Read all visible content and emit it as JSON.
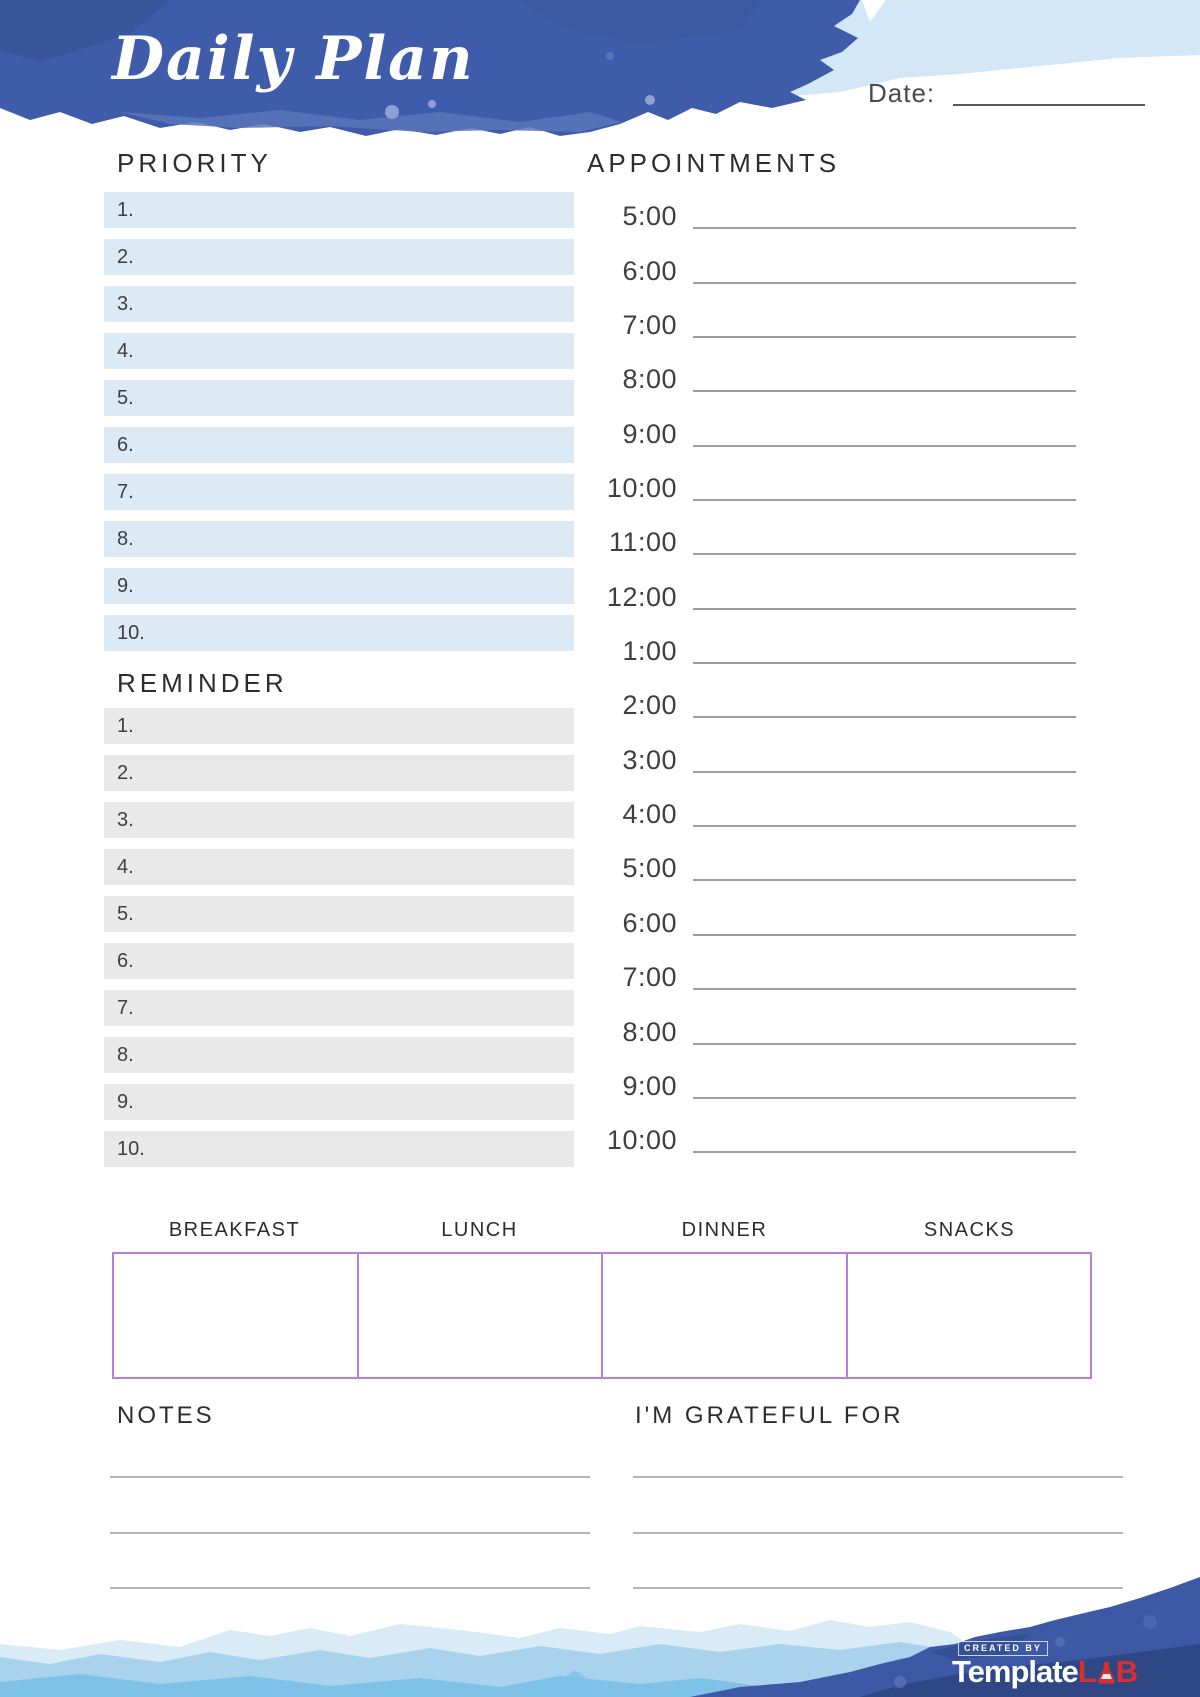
{
  "header": {
    "script_title": "Daily Plan",
    "date_label": "Date:"
  },
  "priority": {
    "title": "PRIORITY",
    "items": [
      "1.",
      "2.",
      "3.",
      "4.",
      "5.",
      "6.",
      "7.",
      "8.",
      "9.",
      "10."
    ]
  },
  "reminder": {
    "title": "REMINDER",
    "items": [
      "1.",
      "2.",
      "3.",
      "4.",
      "5.",
      "6.",
      "7.",
      "8.",
      "9.",
      "10."
    ]
  },
  "appointments": {
    "title": "APPOINTMENTS",
    "times": [
      "5:00",
      "6:00",
      "7:00",
      "8:00",
      "9:00",
      "10:00",
      "11:00",
      "12:00",
      "1:00",
      "2:00",
      "3:00",
      "4:00",
      "5:00",
      "6:00",
      "7:00",
      "8:00",
      "9:00",
      "10:00"
    ]
  },
  "meals": {
    "headers": [
      "BREAKFAST",
      "LUNCH",
      "DINNER",
      "SNACKS"
    ]
  },
  "notes": {
    "title": "NOTES",
    "lines": [
      "",
      "",
      ""
    ]
  },
  "grateful": {
    "title": "I'M GRATEFUL FOR",
    "lines": [
      "",
      "",
      ""
    ]
  },
  "footer": {
    "created_by": "CREATED BY",
    "brand_white": "Template",
    "brand_red_l": "L",
    "brand_red_b": "B"
  },
  "colors": {
    "header_blue": "#3f5caa",
    "header_blue_dark": "#36508f",
    "header_blue_light": "#5974bb",
    "header_blue_pale_spot": "#8fa0d2",
    "pale_blue_band": "#d3e7f7",
    "priority_row_bg": "#dceaf5",
    "reminder_row_bg": "#e9e9e9",
    "rule_line": "#9e9e9e",
    "notes_line": "#b5b5b5",
    "meal_border": "#b77fd8",
    "footer_light_1": "#d9ebf6",
    "footer_light_2": "#a9d2ed",
    "footer_light_3": "#7fc2e8",
    "footer_dark": "#3d59a6",
    "footer_dark_shade": "#2e4480",
    "logo_red": "#d63031"
  }
}
